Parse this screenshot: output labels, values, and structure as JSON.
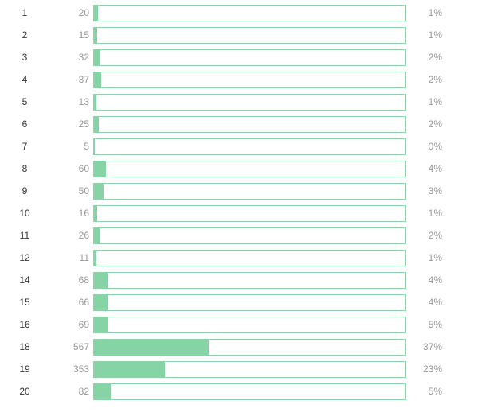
{
  "distribution": {
    "accent_color": "#86d3a6",
    "border_color": "#8dd4a8",
    "rows": [
      {
        "label": "1",
        "count": "20",
        "percent": "1%",
        "share": 0.013
      },
      {
        "label": "2",
        "count": "15",
        "percent": "1%",
        "share": 0.01
      },
      {
        "label": "3",
        "count": "32",
        "percent": "2%",
        "share": 0.021
      },
      {
        "label": "4",
        "count": "37",
        "percent": "2%",
        "share": 0.024
      },
      {
        "label": "5",
        "count": "13",
        "percent": "1%",
        "share": 0.008
      },
      {
        "label": "6",
        "count": "25",
        "percent": "2%",
        "share": 0.016
      },
      {
        "label": "7",
        "count": "5",
        "percent": "0%",
        "share": 0.003
      },
      {
        "label": "8",
        "count": "60",
        "percent": "4%",
        "share": 0.039
      },
      {
        "label": "9",
        "count": "50",
        "percent": "3%",
        "share": 0.032
      },
      {
        "label": "10",
        "count": "16",
        "percent": "1%",
        "share": 0.01
      },
      {
        "label": "11",
        "count": "26",
        "percent": "2%",
        "share": 0.017
      },
      {
        "label": "12",
        "count": "11",
        "percent": "1%",
        "share": 0.007
      },
      {
        "label": "14",
        "count": "68",
        "percent": "4%",
        "share": 0.044
      },
      {
        "label": "15",
        "count": "66",
        "percent": "4%",
        "share": 0.043
      },
      {
        "label": "16",
        "count": "69",
        "percent": "5%",
        "share": 0.045
      },
      {
        "label": "18",
        "count": "567",
        "percent": "37%",
        "share": 0.368
      },
      {
        "label": "19",
        "count": "353",
        "percent": "23%",
        "share": 0.229
      },
      {
        "label": "20",
        "count": "82",
        "percent": "5%",
        "share": 0.053
      }
    ]
  }
}
